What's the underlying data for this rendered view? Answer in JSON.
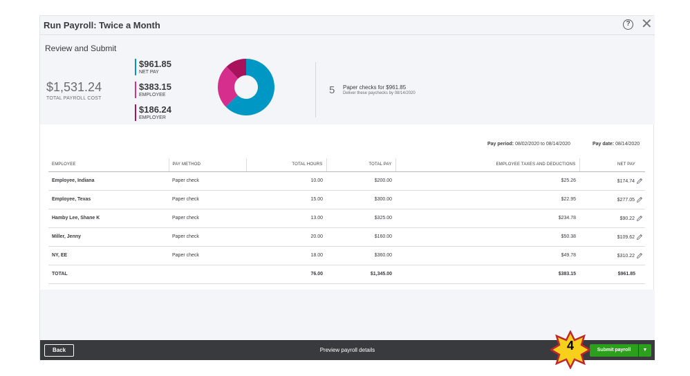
{
  "window": {
    "title": "Run Payroll: Twice a Month",
    "help_icon": "question-circle-icon",
    "close_icon": "close-icon"
  },
  "summary": {
    "heading": "Review and Submit",
    "total_amount": "$1,531.24",
    "total_label": "TOTAL PAYROLL COST",
    "legend": [
      {
        "amount": "$961.85",
        "label": "NET PAY",
        "color": "#0097c4"
      },
      {
        "amount": "$383.15",
        "label": "EMPLOYEE",
        "color": "#d62e8c"
      },
      {
        "amount": "$186.24",
        "label": "EMPLOYER",
        "color": "#a8125c"
      }
    ],
    "donut_values": [
      961.85,
      383.15,
      186.24
    ],
    "checks_count": "5",
    "checks_title": "Paper checks for $961.85",
    "checks_sub": "Deliver these paychecks by 08/14/2020"
  },
  "period": {
    "pay_period_label": "Pay period:",
    "pay_period_value": "08/02/2020 to 08/14/2020",
    "pay_date_label": "Pay date:",
    "pay_date_value": "08/14/2020"
  },
  "table": {
    "headers": [
      "EMPLOYEE",
      "PAY METHOD",
      "TOTAL HOURS",
      "TOTAL PAY",
      "EMPLOYEE TAXES AND DEDUCTIONS",
      "NET PAY"
    ],
    "rows": [
      [
        "Employee, Indiana",
        "Paper check",
        "10.00",
        "$200.00",
        "$25.26",
        "$174.74"
      ],
      [
        "Employee, Texas",
        "Paper check",
        "15.00",
        "$300.00",
        "$22.95",
        "$277.05"
      ],
      [
        "Hamby Lee, Shane K",
        "Paper check",
        "13.00",
        "$325.00",
        "$234.78",
        "$90.22"
      ],
      [
        "Miller, Jenny",
        "Paper check",
        "20.00",
        "$160.00",
        "$50.38",
        "$109.62"
      ],
      [
        "NY, EE",
        "Paper check",
        "18.00",
        "$360.00",
        "$49.78",
        "$310.22"
      ]
    ],
    "total": [
      "TOTAL",
      "",
      "76.00",
      "$1,345.00",
      "$383.15",
      "$961.85"
    ],
    "edit_icon": "pencil-icon"
  },
  "footer": {
    "back_label": "Back",
    "preview_label": "Preview payroll details",
    "submit_label": "Submit payroll",
    "submit_caret": "▼",
    "step_badge": "4"
  },
  "colors": {
    "net_pay": "#0097c4",
    "employee": "#d62e8c",
    "employer": "#a8125c",
    "submit_green": "#2ca01c",
    "footer_bg": "#393a3d"
  }
}
